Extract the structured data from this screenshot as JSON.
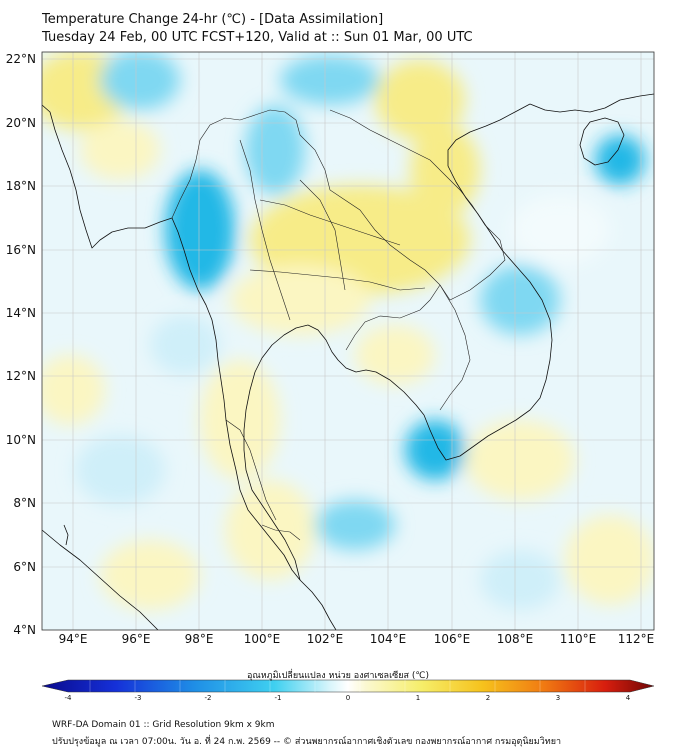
{
  "title": {
    "line1": "Temperature Change 24-hr (℃) - [Data Assimilation]",
    "line2": "Tuesday 24 Feb, 00 UTC FCST+120, Valid at :: Sun 01 Mar, 00 UTC"
  },
  "map": {
    "lat_ticks": [
      "22°N",
      "20°N",
      "18°N",
      "16°N",
      "14°N",
      "12°N",
      "10°N",
      "8°N",
      "6°N",
      "4°N"
    ],
    "lon_ticks": [
      "94°E",
      "96°E",
      "98°E",
      "100°E",
      "102°E",
      "104°E",
      "106°E",
      "108°E",
      "110°E",
      "112°E"
    ],
    "lat_range": [
      4,
      22.2
    ],
    "lon_range": [
      93,
      112.4
    ],
    "field_colors": {
      "strong_cool": "#22b8e6",
      "cool": "#7fd8f2",
      "light_cool": "#cfeff9",
      "neutral": "#f3fbfd",
      "light_warm": "#fbf6c2",
      "warm": "#f7ec88"
    },
    "coastline_color": "#111111",
    "grid_color": "#c8c8c8"
  },
  "colorbar": {
    "label": "อุณหภูมิเปลี่ยนแปลง หน่วย องศาเซลเซียส (℃)",
    "ticks": [
      "-4",
      "-3",
      "-2",
      "-1",
      "0",
      "1",
      "2",
      "3",
      "4"
    ],
    "range": [
      -4,
      4
    ]
  },
  "footer": {
    "line1": "WRF-DA Domain 01 :: Grid Resolution 9km x 9km",
    "line2": "ปรับปรุงข้อมูล ณ เวลา 07:00น. วัน อ. ที่ 24 ก.พ. 2569 -- © ส่วนพยากรณ์อากาศเชิงตัวเลข กองพยากรณ์อากาศ กรมอุตุนิยมวิทยา"
  }
}
